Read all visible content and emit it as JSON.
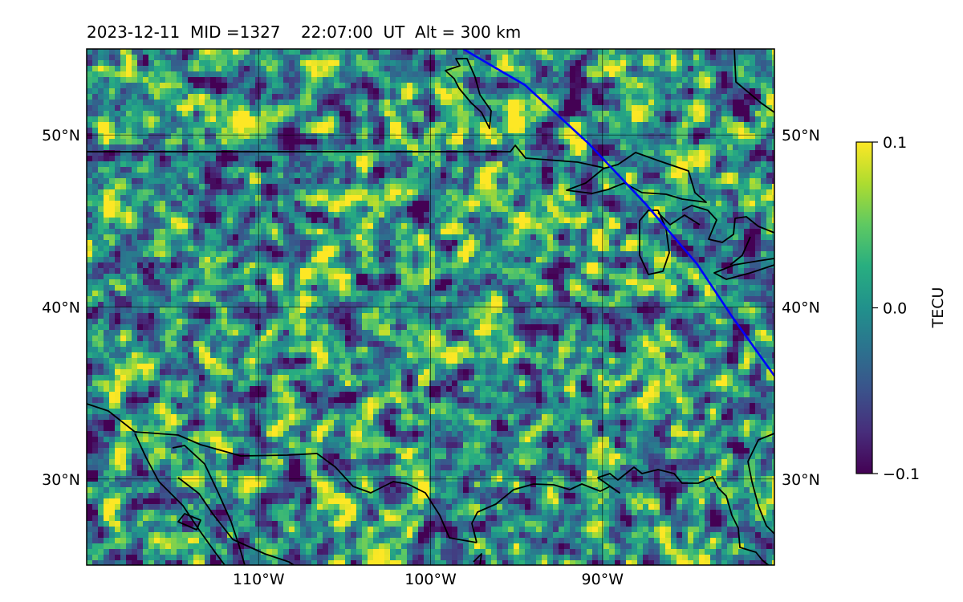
{
  "title": "2023-12-11  MID =1327    22:07:00  UT  Alt = 300 km",
  "map": {
    "lon_range": [
      -120,
      -80
    ],
    "lat_range": [
      25,
      55
    ],
    "lon_ticks": [
      {
        "value": -110,
        "label": "110°W"
      },
      {
        "value": -100,
        "label": "100°W"
      },
      {
        "value": -90,
        "label": "90°W"
      }
    ],
    "lat_ticks": [
      {
        "value": 30,
        "label": "30°N"
      },
      {
        "value": 40,
        "label": "40°N"
      },
      {
        "value": 50,
        "label": "50°N"
      }
    ],
    "track_color": "#0000ff",
    "coast_color": "#000000",
    "track": [
      [
        -98.1,
        55
      ],
      [
        -94.5,
        52.9
      ],
      [
        -90.8,
        49.5
      ],
      [
        -87.5,
        46
      ],
      [
        -84.5,
        42.5
      ],
      [
        -82.5,
        39.5
      ],
      [
        -80,
        36
      ]
    ]
  },
  "colorbar": {
    "label": "TECU",
    "colormap": "viridis",
    "min": -0.1,
    "max": 0.1,
    "ticks": [
      {
        "value": 0.1,
        "label": "0.1"
      },
      {
        "value": 0.0,
        "label": "0.0"
      },
      {
        "value": -0.1,
        "label": "−0.1"
      }
    ]
  }
}
